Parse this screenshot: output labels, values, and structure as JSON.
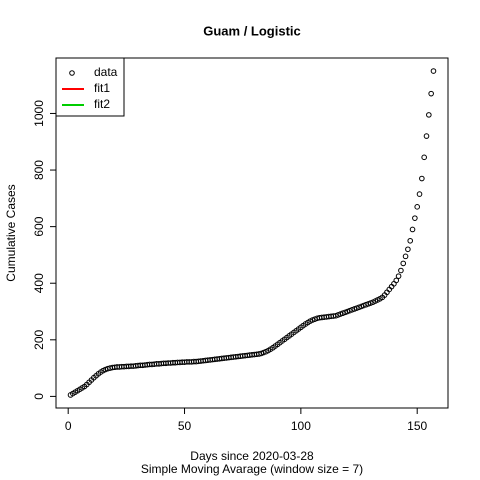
{
  "chart_data": {
    "type": "scatter",
    "title": "Guam / Logistic",
    "xlabel": "Days since 2020-03-28",
    "subtitle": "Simple Moving Avarage (window size = 7)",
    "ylabel": "Cumulative Cases",
    "xlim": [
      -5.24,
      163.24
    ],
    "ylim": [
      -41,
      1196
    ],
    "xticks": [
      0,
      50,
      100,
      150
    ],
    "yticks": [
      0,
      200,
      400,
      600,
      800,
      1000
    ],
    "legend": {
      "position": "topleft",
      "entries": [
        {
          "name": "data",
          "color": "#000000",
          "symbol": "circle"
        },
        {
          "name": "fit1",
          "color": "#ff0000",
          "symbol": "line"
        },
        {
          "name": "fit2",
          "color": "#00cd00",
          "symbol": "line"
        }
      ]
    },
    "series": [
      {
        "name": "data",
        "color": "#000000",
        "x": [
          1,
          2,
          3,
          4,
          5,
          6,
          7,
          8,
          9,
          10,
          11,
          12,
          13,
          14,
          15,
          16,
          17,
          18,
          19,
          20,
          21,
          22,
          23,
          24,
          25,
          26,
          27,
          28,
          29,
          30,
          31,
          32,
          33,
          34,
          35,
          36,
          37,
          38,
          39,
          40,
          41,
          42,
          43,
          44,
          45,
          46,
          47,
          48,
          49,
          50,
          51,
          52,
          53,
          54,
          55,
          56,
          57,
          58,
          59,
          60,
          61,
          62,
          63,
          64,
          65,
          66,
          67,
          68,
          69,
          70,
          71,
          72,
          73,
          74,
          75,
          76,
          77,
          78,
          79,
          80,
          81,
          82,
          83,
          84,
          85,
          86,
          87,
          88,
          89,
          90,
          91,
          92,
          93,
          94,
          95,
          96,
          97,
          98,
          99,
          100,
          101,
          102,
          103,
          104,
          105,
          106,
          107,
          108,
          109,
          110,
          111,
          112,
          113,
          114,
          115,
          116,
          117,
          118,
          119,
          120,
          121,
          122,
          123,
          124,
          125,
          126,
          127,
          128,
          129,
          130,
          131,
          132,
          133,
          134,
          135,
          136,
          137,
          138,
          139,
          140,
          141,
          142,
          143,
          144,
          145,
          146,
          147,
          148,
          149,
          150,
          151,
          152,
          153,
          154,
          155,
          156,
          157
        ],
        "values": [
          5,
          10,
          15,
          20,
          25,
          30,
          35,
          42,
          50,
          58,
          66,
          73,
          80,
          86,
          91,
          95,
          98,
          100,
          102,
          103,
          104,
          104,
          105,
          105,
          106,
          106,
          107,
          107,
          108,
          109,
          110,
          110,
          111,
          112,
          113,
          113,
          114,
          115,
          115,
          116,
          117,
          117,
          118,
          118,
          119,
          119,
          120,
          120,
          121,
          121,
          122,
          122,
          122,
          123,
          123,
          124,
          125,
          126,
          127,
          128,
          129,
          130,
          131,
          132,
          133,
          134,
          135,
          136,
          137,
          138,
          139,
          140,
          141,
          142,
          143,
          144,
          145,
          146,
          147,
          148,
          149,
          150,
          152,
          155,
          158,
          162,
          167,
          172,
          178,
          184,
          190,
          196,
          202,
          208,
          214,
          220,
          226,
          232,
          238,
          244,
          250,
          256,
          261,
          266,
          270,
          273,
          276,
          278,
          279,
          280,
          281,
          282,
          283,
          284,
          285,
          288,
          291,
          294,
          297,
          300,
          303,
          306,
          309,
          312,
          315,
          318,
          321,
          324,
          327,
          330,
          333,
          337,
          341,
          345,
          350,
          358,
          368,
          378,
          388,
          398,
          410,
          425,
          445,
          470,
          495,
          520,
          550,
          590,
          630,
          670,
          715,
          770,
          845,
          920,
          995,
          1070,
          1150
        ]
      }
    ]
  }
}
